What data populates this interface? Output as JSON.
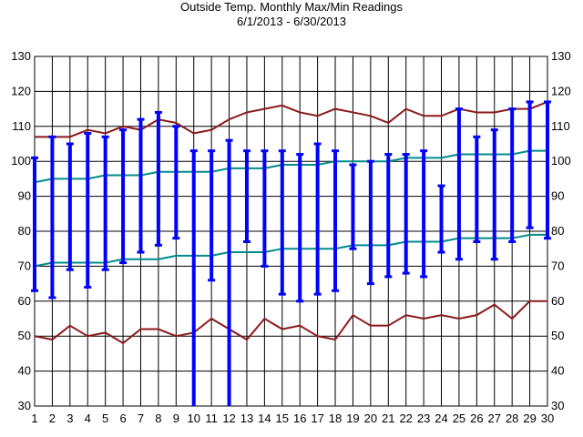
{
  "chart_data": {
    "type": "line",
    "title": "Outside Temp. Monthly Max/Min Readings",
    "subtitle": "6/1/2013 - 6/30/2013",
    "xlabel": "",
    "ylabel": "",
    "ylim": [
      30,
      130
    ],
    "yticks": [
      30,
      40,
      50,
      60,
      70,
      80,
      90,
      100,
      110,
      120,
      130
    ],
    "x": [
      1,
      2,
      3,
      4,
      5,
      6,
      7,
      8,
      9,
      10,
      11,
      12,
      13,
      14,
      15,
      16,
      17,
      18,
      19,
      20,
      21,
      22,
      23,
      24,
      25,
      26,
      27,
      28,
      29,
      30
    ],
    "grid": true,
    "colors": {
      "record_lines": "#8b1a1a",
      "normal_lines": "#008b8b",
      "daily_range": "#0000ff",
      "grid": "#000000"
    },
    "series": [
      {
        "type": "line",
        "color": "#8b1a1a",
        "values": [
          107,
          107,
          107,
          109,
          108,
          110,
          109,
          112,
          111,
          108,
          109,
          112,
          114,
          115,
          116,
          114,
          113,
          115,
          114,
          113,
          111,
          115,
          113,
          113,
          115,
          114,
          114,
          115,
          115,
          117
        ]
      },
      {
        "type": "line",
        "color": "#008b8b",
        "values": [
          94,
          95,
          95,
          95,
          96,
          96,
          96,
          97,
          97,
          97,
          97,
          98,
          98,
          98,
          99,
          99,
          99,
          100,
          100,
          100,
          100,
          101,
          101,
          101,
          102,
          102,
          102,
          102,
          103,
          103
        ]
      },
      {
        "type": "line",
        "color": "#008b8b",
        "values": [
          70,
          71,
          71,
          71,
          71,
          72,
          72,
          72,
          73,
          73,
          73,
          74,
          74,
          74,
          75,
          75,
          75,
          75,
          76,
          76,
          76,
          77,
          77,
          77,
          78,
          78,
          78,
          78,
          79,
          79
        ]
      },
      {
        "type": "line",
        "color": "#8b1a1a",
        "values": [
          50,
          49,
          53,
          50,
          51,
          48,
          52,
          52,
          50,
          51,
          55,
          52,
          49,
          55,
          52,
          53,
          50,
          49,
          56,
          53,
          53,
          56,
          55,
          56,
          55,
          56,
          59,
          55,
          60,
          60
        ]
      },
      {
        "type": "range",
        "color": "#0000ff",
        "high": [
          101,
          107,
          105,
          108,
          107,
          109,
          112,
          114,
          110,
          103,
          103,
          106,
          103,
          103,
          103,
          102,
          105,
          103,
          99,
          100,
          102,
          102,
          103,
          93,
          115,
          107,
          109,
          115,
          117,
          117
        ],
        "low": [
          63,
          61,
          69,
          64,
          69,
          71,
          74,
          76,
          78,
          null,
          66,
          null,
          77,
          70,
          62,
          60,
          62,
          63,
          75,
          65,
          67,
          68,
          67,
          74,
          72,
          77,
          72,
          77,
          81,
          78
        ]
      }
    ]
  }
}
